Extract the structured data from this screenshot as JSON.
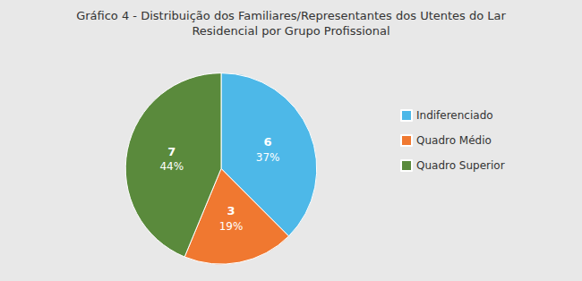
{
  "chart_data": {
    "type": "pie",
    "title": "Gráfico 4 - Distribuição dos Familiares/Representantes dos Utentes do Lar",
    "subtitle": "Residencial por Grupo Profissional",
    "categories": [
      "Indiferenciado",
      "Quadro Médio",
      "Quadro Superior"
    ],
    "values": [
      6,
      3,
      7
    ],
    "percentages": [
      37,
      19,
      44
    ],
    "percentage_labels": [
      "37%",
      "19%",
      "44%"
    ],
    "colors": [
      "#4db8e8",
      "#f07830",
      "#5a8a3c"
    ],
    "data_labels": true,
    "legend": "right"
  }
}
